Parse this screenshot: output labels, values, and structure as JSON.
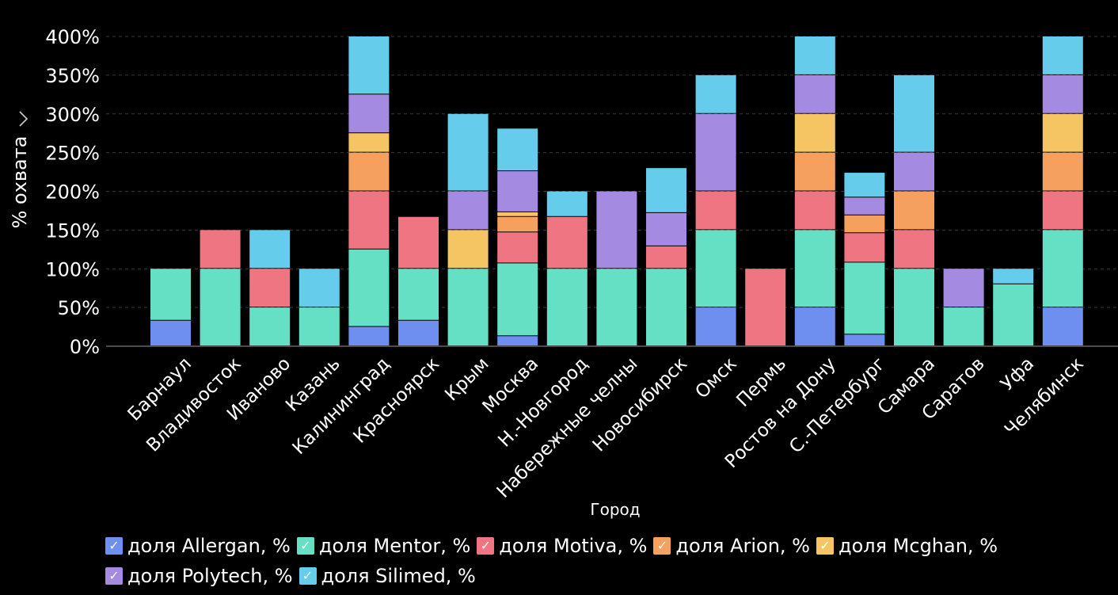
{
  "chart_data": {
    "type": "bar",
    "stacked": true,
    "xlabel": "Город",
    "ylabel": "% охвата",
    "ylim": [
      0,
      400
    ],
    "yticks": [
      "0%",
      "50%",
      "100%",
      "150%",
      "200%",
      "250%",
      "300%",
      "350%",
      "400%"
    ],
    "grid": true,
    "legend_position": "bottom",
    "categories": [
      "Барнаул",
      "Владивосток",
      "Иваново",
      "Казань",
      "Калининград",
      "Красноярск",
      "Крым",
      "Москва",
      "Н.-Новгород",
      "Набережные челны",
      "Новосибирск",
      "Омск",
      "Пермь",
      "Ростов на Дону",
      "С.-Петербург",
      "Самара",
      "Саратов",
      "Уфа",
      "Челябинск"
    ],
    "series": [
      {
        "name": "доля Allergan, %",
        "color": "#6f8ff0",
        "values": [
          33,
          0,
          0,
          0,
          25,
          33,
          0,
          13,
          0,
          0,
          0,
          50,
          0,
          50,
          15,
          0,
          0,
          0,
          50
        ]
      },
      {
        "name": "доля Mentor, %",
        "color": "#66e0c5",
        "values": [
          67,
          100,
          50,
          50,
          100,
          67,
          100,
          94,
          100,
          100,
          100,
          100,
          0,
          100,
          93,
          100,
          50,
          80,
          100
        ]
      },
      {
        "name": "доля Motiva, %",
        "color": "#f07582",
        "values": [
          0,
          50,
          50,
          0,
          75,
          67,
          0,
          40,
          67,
          0,
          29,
          50,
          100,
          50,
          38,
          50,
          0,
          0,
          50
        ]
      },
      {
        "name": "доля Arion, %",
        "color": "#f5a05f",
        "values": [
          0,
          0,
          0,
          0,
          50,
          0,
          0,
          20,
          0,
          0,
          0,
          0,
          0,
          50,
          23,
          50,
          0,
          0,
          50
        ]
      },
      {
        "name": "доля Mcghan, %",
        "color": "#f5c563",
        "values": [
          0,
          0,
          0,
          0,
          25,
          0,
          50,
          6,
          0,
          0,
          0,
          0,
          0,
          50,
          0,
          0,
          0,
          0,
          50
        ]
      },
      {
        "name": "доля Polytech, %",
        "color": "#a48ae0",
        "values": [
          0,
          0,
          0,
          0,
          50,
          0,
          50,
          53,
          0,
          100,
          43,
          100,
          0,
          50,
          23,
          50,
          50,
          0,
          50
        ]
      },
      {
        "name": "доля Silimed, %",
        "color": "#66cceb",
        "values": [
          0,
          0,
          50,
          50,
          75,
          0,
          100,
          55,
          33,
          0,
          58,
          50,
          0,
          50,
          32,
          100,
          0,
          20,
          50
        ]
      }
    ]
  }
}
